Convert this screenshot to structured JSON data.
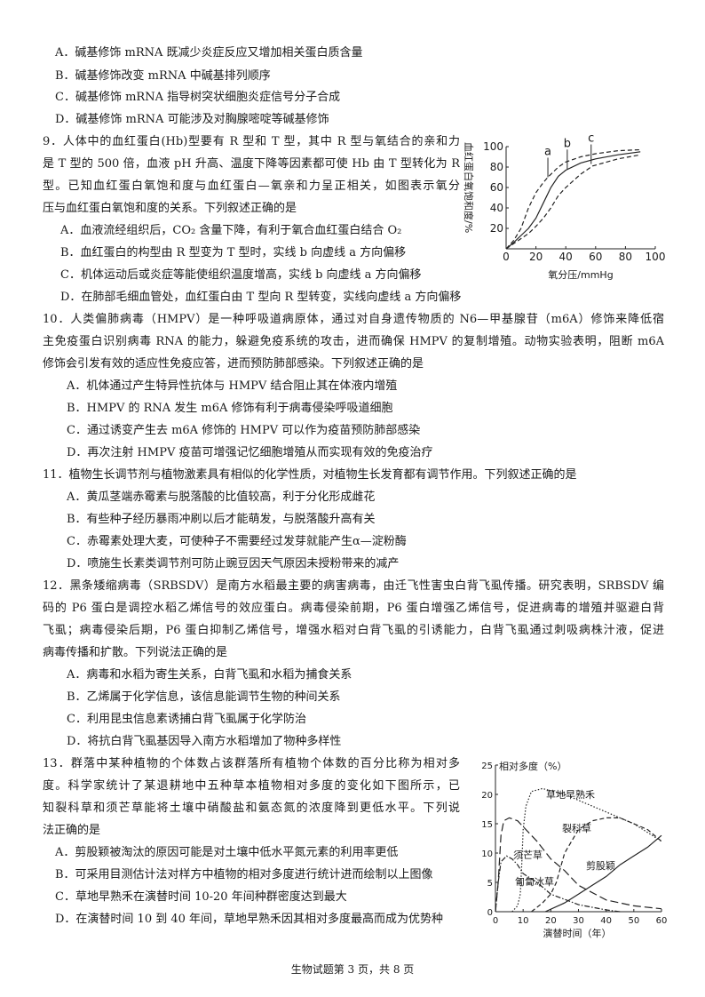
{
  "q8": {
    "options": [
      "A．碱基修饰 mRNA 既减少炎症反应又增加相关蛋白质含量",
      "B．碱基修饰改变 mRNA 中碱基排列顺序",
      "C．碱基修饰 mRNA 指导树突状细胞炎症信号分子合成",
      "D．碱基修饰 mRNA 可能涉及对胸腺嘧啶等碱基修饰"
    ]
  },
  "q9": {
    "stem": [
      "9．人体中的血红蛋白(Hb)型要有 R 型和 T 型，其中 R 型与氧结合的亲和力",
      "是 T 型的 500 倍，血液 pH 升高、温度下降等因素都可使 Hb 由 T 型转化为 R",
      "型。已知血红蛋白氧饱和度与血红蛋白—氧亲和力呈正相关，如图表示氧分",
      "压与血红蛋白氧饱和度的关系。下列叙述正确的是"
    ],
    "options": [
      "A．血液流经组织后，CO₂ 含量下降，有利于氧合血红蛋白结合 O₂",
      "B．血红蛋白的构型由 R 型变为 T 型时，实线 b 向虚线 a 方向偏移",
      "C．机体运动后或炎症等能使组织温度增高，实线 b 向虚线 a 方向偏移",
      "D．在肺部毛细血管处，血红蛋白由 T 型向 R 型转变，实线向虚线 a 方向偏移"
    ]
  },
  "q10": {
    "stem": [
      "10．人类偏肺病毒（HMPV）是一种呼吸道病原体，通过对自身遗传物质的 N6—甲基腺苷（m6A）修饰来降低宿",
      "主免疫蛋白识别病毒 RNA 的能力，躲避免疫系统的攻击，进而确保 HMPV 的复制增殖。动物实验表明，阻断 m6A",
      "修饰会引发有效的适应性免疫应答，进而预防肺部感染。下列叙述正确的是"
    ],
    "options": [
      "A．机体通过产生特异性抗体与 HMPV 结合阻止其在体液内增殖",
      "B．HMPV 的 RNA 发生 m6A 修饰有利于病毒侵染呼吸道细胞",
      "C．通过诱变产生去 m6A 修饰的 HMPV 可以作为疫苗预防肺部感染",
      "D．再次注射 HMPV 疫苗可增强记忆细胞增殖从而实现有效的免疫治疗"
    ]
  },
  "q11": {
    "stem": [
      "11．植物生长调节剂与植物激素具有相似的化学性质，对植物生长发育都有调节作用。下列叙述正确的是"
    ],
    "options": [
      "A．黄瓜茎端赤霉素与脱落酸的比值较高，利于分化形成雌花",
      "B．有些种子经历暴雨冲刷以后才能萌发，与脱落酸升高有关",
      "C．赤霉素处理大麦，可使种子不需要经过发芽就能产生α—淀粉酶",
      "D．喷施生长素类调节剂可防止豌豆因天气原因未授粉带来的减产"
    ]
  },
  "q12": {
    "stem": [
      "12．黑条矮缩病毒（SRBSDV）是南方水稻最主要的病害病毒，由迁飞性害虫白背飞虱传播。研究表明，SRBSDV 编",
      "码的 P6 蛋白是调控水稻乙烯信号的效应蛋白。病毒侵染前期，P6 蛋白增强乙烯信号，促进病毒的增殖并驱避白背",
      "飞虱；病毒侵染后期，P6 蛋白抑制乙烯信号，增强水稻对白背飞虱的引诱能力，白背飞虱通过刺吸病株汁液，促进",
      "病毒传播和扩散。下列说法正确的是"
    ],
    "options": [
      "A．病毒和水稻为寄生关系，白背飞虱和水稻为捕食关系",
      "B．乙烯属于化学信息，该信息能调节生物的种间关系",
      "C．利用昆虫信息素诱捕白背飞虱属于化学防治",
      "D．将抗白背飞虱基因导入南方水稻增加了物种多样性"
    ]
  },
  "q13": {
    "stem": [
      "13．群落中某种植物的个体数占该群落所有植物个体数的百分比称为相对多",
      "度。科学家统计了某退耕地中五种草本植物相对多度的变化如下图所示，已",
      "知裂科草和须芒草能将土壤中硝酸盐和氨态氮的浓度降到更低水平。下列说",
      "法正确的是"
    ],
    "options": [
      "A．剪股颖被淘汰的原因可能是对土壤中低水平氮元素的利用率更低",
      "B．可采用目测估计法对样方中植物的相对多度进行统计进而绘制以上图像",
      "C．草地早熟禾在演替时间 10-20 年间种群密度达到最大",
      "D．在演替时间 10 到 40 年间，草地早熟禾因其相对多度最高而成为优势种"
    ]
  },
  "footer": "生物试题第 3 页，共 8 页",
  "chart_data": [
    {
      "type": "line",
      "xlabel": "氧分压/mmHg",
      "ylabel": "血红蛋白氧饱和度/%",
      "xlim": [
        0,
        100
      ],
      "ylim": [
        0,
        100
      ],
      "xticks": [
        "0",
        "20",
        "40",
        "60",
        "80",
        "100"
      ],
      "yticks": [
        "20",
        "40",
        "60",
        "80",
        "100"
      ],
      "series": [
        {
          "name": "a",
          "style": "dashed",
          "x": [
            0,
            5,
            10,
            15,
            20,
            25,
            28,
            35,
            40,
            50,
            60,
            75,
            90
          ],
          "y": [
            0,
            8,
            20,
            40,
            55,
            65,
            70,
            80,
            85,
            90,
            93,
            96,
            97
          ]
        },
        {
          "name": "b",
          "style": "solid",
          "x": [
            0,
            5,
            10,
            15,
            20,
            25,
            30,
            35,
            40,
            50,
            60,
            75,
            90
          ],
          "y": [
            0,
            6,
            13,
            20,
            30,
            45,
            60,
            71,
            77,
            84,
            88,
            92,
            95
          ]
        },
        {
          "name": "c",
          "style": "dashed",
          "x": [
            0,
            5,
            10,
            15,
            20,
            25,
            30,
            35,
            40,
            50,
            58,
            75,
            90
          ],
          "y": [
            0,
            5,
            10,
            15,
            22,
            30,
            40,
            52,
            60,
            73,
            81,
            88,
            92
          ]
        }
      ],
      "markers": [
        {
          "name": "a",
          "x": 28,
          "y": 70
        },
        {
          "name": "b",
          "x": 41,
          "y": 78
        },
        {
          "name": "c",
          "x": 57,
          "y": 83
        }
      ]
    },
    {
      "type": "line",
      "xlabel": "演替时间（年）",
      "ylabel": "相对多度（%）",
      "xlim": [
        0,
        60
      ],
      "ylim": [
        0,
        25
      ],
      "xticks": [
        "0",
        "10",
        "20",
        "30",
        "40",
        "50",
        "60"
      ],
      "yticks": [
        "0",
        "5",
        "10",
        "15",
        "20",
        "25"
      ],
      "series": [
        {
          "name": "草地早熟禾",
          "style": "dotted",
          "x": [
            6,
            8,
            9,
            9.5,
            10,
            11,
            13,
            17,
            25,
            35,
            50,
            60
          ],
          "y": [
            0,
            1,
            3,
            8,
            14,
            18,
            20.5,
            21,
            20,
            18,
            15,
            12
          ]
        },
        {
          "name": "裂科草",
          "style": "dashed",
          "x": [
            13,
            17,
            20,
            22,
            25,
            30,
            35,
            40,
            45,
            50,
            55,
            60
          ],
          "y": [
            0,
            1.5,
            3,
            5,
            10,
            14,
            15.5,
            16,
            16,
            15,
            14,
            12
          ]
        },
        {
          "name": "须芒草",
          "style": "solid",
          "x": [
            18,
            25,
            30,
            35,
            40,
            45,
            50,
            55,
            60
          ],
          "y": [
            0,
            1.5,
            3,
            4.5,
            6,
            8,
            9.5,
            11,
            13
          ]
        },
        {
          "name": "匍匐冰草",
          "style": "longdash",
          "x": [
            0,
            1,
            2,
            3,
            5,
            8,
            10,
            15,
            20,
            25,
            30,
            40,
            50,
            60
          ],
          "y": [
            0,
            5,
            13,
            15.5,
            16,
            15.5,
            14.5,
            12,
            9,
            7,
            4.5,
            2,
            1,
            0.5
          ]
        },
        {
          "name": "剪股颖",
          "style": "dashdot",
          "x": [
            0,
            1,
            2,
            4,
            6,
            8,
            10,
            15,
            20,
            30,
            40,
            45
          ],
          "y": [
            0,
            5,
            8.5,
            9.5,
            9,
            8,
            6.5,
            5,
            3,
            1.2,
            0.3,
            0
          ]
        }
      ]
    }
  ]
}
